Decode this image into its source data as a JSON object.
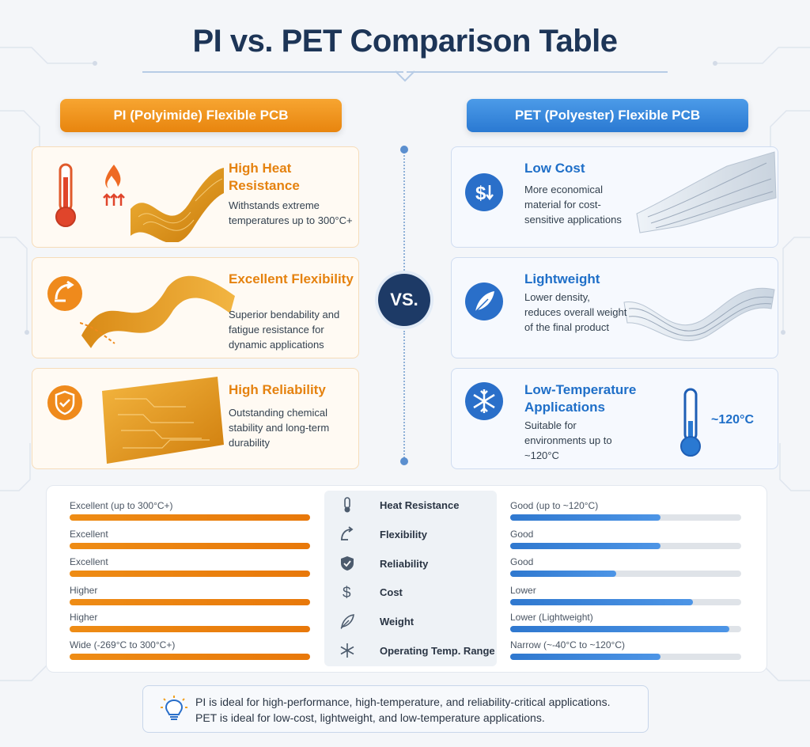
{
  "title": "PI vs. PET Comparison Table",
  "colors": {
    "pi_accent": "#e8850e",
    "pet_accent": "#2a79d2",
    "title": "#1d3557",
    "vs_badge": "#1d3a66"
  },
  "pi": {
    "header": "PI (Polyimide) Flexible PCB",
    "cards": [
      {
        "title": "High Heat Resistance",
        "desc": "Withstands extreme temperatures up to 300°C+",
        "icon": "thermometer-icon"
      },
      {
        "title": "Excellent Flexibility",
        "desc": "Superior bendability and fatigue resistance for dynamic applications",
        "icon": "bend-arrow-icon"
      },
      {
        "title": "High Reliability",
        "desc": "Outstanding chemical stability and long-term durability",
        "icon": "shield-check-icon"
      }
    ]
  },
  "pet": {
    "header": "PET (Polyester) Flexible PCB",
    "cards": [
      {
        "title": "Low Cost",
        "desc": "More economical material for cost-sensitive applications",
        "icon": "dollar-down-icon"
      },
      {
        "title": "Lightweight",
        "desc": "Lower density, reduces overall weight of the final product",
        "icon": "feather-icon"
      },
      {
        "title": "Low-Temperature Applications",
        "desc": "Suitable for environments up to ~120°C",
        "icon": "snowflake-icon"
      }
    ],
    "temp_label": "~120°C"
  },
  "vs_label": "VS.",
  "comparison": {
    "rows": [
      {
        "category": "Heat Resistance",
        "icon": "thermometer-icon",
        "pi_label": "Excellent (up to 300°C+)",
        "pi_level": 1.0,
        "pet_label": "Good (up to ~120°C)",
        "pet_level": 0.65
      },
      {
        "category": "Flexibility",
        "icon": "bend-arrow-icon",
        "pi_label": "Excellent",
        "pi_level": 1.0,
        "pet_label": "Good",
        "pet_level": 0.65
      },
      {
        "category": "Reliability",
        "icon": "shield-check-icon",
        "pi_label": "Excellent",
        "pi_level": 1.0,
        "pet_label": "Good",
        "pet_level": 0.46
      },
      {
        "category": "Cost",
        "icon": "dollar-icon",
        "pi_label": "Higher",
        "pi_level": 1.0,
        "pet_label": "Lower",
        "pet_level": 0.79
      },
      {
        "category": "Weight",
        "icon": "feather-icon",
        "pi_label": "Higher",
        "pi_level": 1.0,
        "pet_label": "Lower (Lightweight)",
        "pet_level": 0.95
      },
      {
        "category": "Operating Temp. Range",
        "icon": "snowflake-icon",
        "pi_label": "Wide (-269°C to 300°C+)",
        "pi_level": 1.0,
        "pet_label": "Narrow (~-40°C to ~120°C)",
        "pet_level": 0.65
      }
    ]
  },
  "summary": {
    "line1": "PI is ideal for high-performance, high-temperature, and reliability-critical applications.",
    "line2": "PET is ideal for low-cost, lightweight, and low-temperature applications.",
    "icon": "lightbulb-icon"
  }
}
